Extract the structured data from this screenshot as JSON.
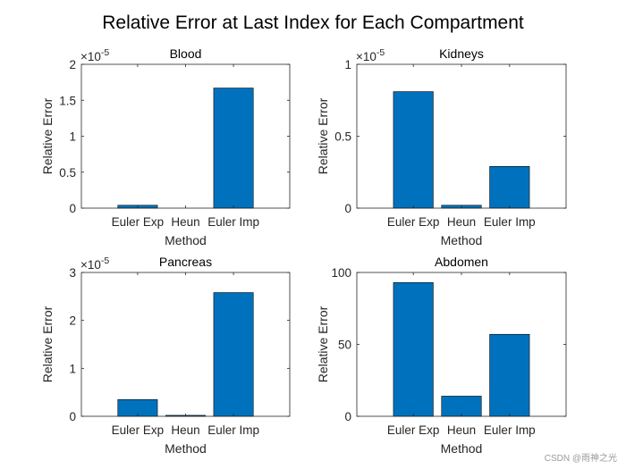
{
  "figure": {
    "title": "Relative Error at Last Index for Each Compartment",
    "watermark": "CSDN @雨神之光"
  },
  "style": {
    "bar_color": "#0072bd",
    "axis_color": "#262626"
  },
  "chart_data": [
    {
      "type": "bar",
      "title": "Blood",
      "categories": [
        "Euler Exp",
        "Heun",
        "Euler Imp"
      ],
      "values": [
        4e-07,
        0.0,
        1.67e-05
      ],
      "ylim": [
        0,
        2e-05
      ],
      "yticks": [
        0,
        5e-06,
        1e-05,
        1.5e-05,
        2e-05
      ],
      "ytick_labels": [
        "0",
        "0.5",
        "1",
        "1.5",
        "2"
      ],
      "exponent": "-5",
      "xlabel": "Method",
      "ylabel": "Relative Error"
    },
    {
      "type": "bar",
      "title": "Kidneys",
      "categories": [
        "Euler Exp",
        "Heun",
        "Euler Imp"
      ],
      "values": [
        8.1e-06,
        2e-07,
        2.9e-06
      ],
      "ylim": [
        0,
        1e-05
      ],
      "yticks": [
        0,
        5e-06,
        1e-05
      ],
      "ytick_labels": [
        "0",
        "0.5",
        "1"
      ],
      "exponent": "-5",
      "xlabel": "Method",
      "ylabel": "Relative Error"
    },
    {
      "type": "bar",
      "title": "Pancreas",
      "categories": [
        "Euler Exp",
        "Heun",
        "Euler Imp"
      ],
      "values": [
        3.5e-06,
        2e-07,
        2.58e-05
      ],
      "ylim": [
        0,
        3e-05
      ],
      "yticks": [
        0,
        1e-05,
        2e-05,
        3e-05
      ],
      "ytick_labels": [
        "0",
        "1",
        "2",
        "3"
      ],
      "exponent": "-5",
      "xlabel": "Method",
      "ylabel": "Relative Error"
    },
    {
      "type": "bar",
      "title": "Abdomen",
      "categories": [
        "Euler Exp",
        "Heun",
        "Euler Imp"
      ],
      "values": [
        93,
        14,
        57
      ],
      "ylim": [
        0,
        100
      ],
      "yticks": [
        0,
        50,
        100
      ],
      "ytick_labels": [
        "0",
        "50",
        "100"
      ],
      "exponent": "",
      "xlabel": "Method",
      "ylabel": "Relative Error"
    }
  ]
}
